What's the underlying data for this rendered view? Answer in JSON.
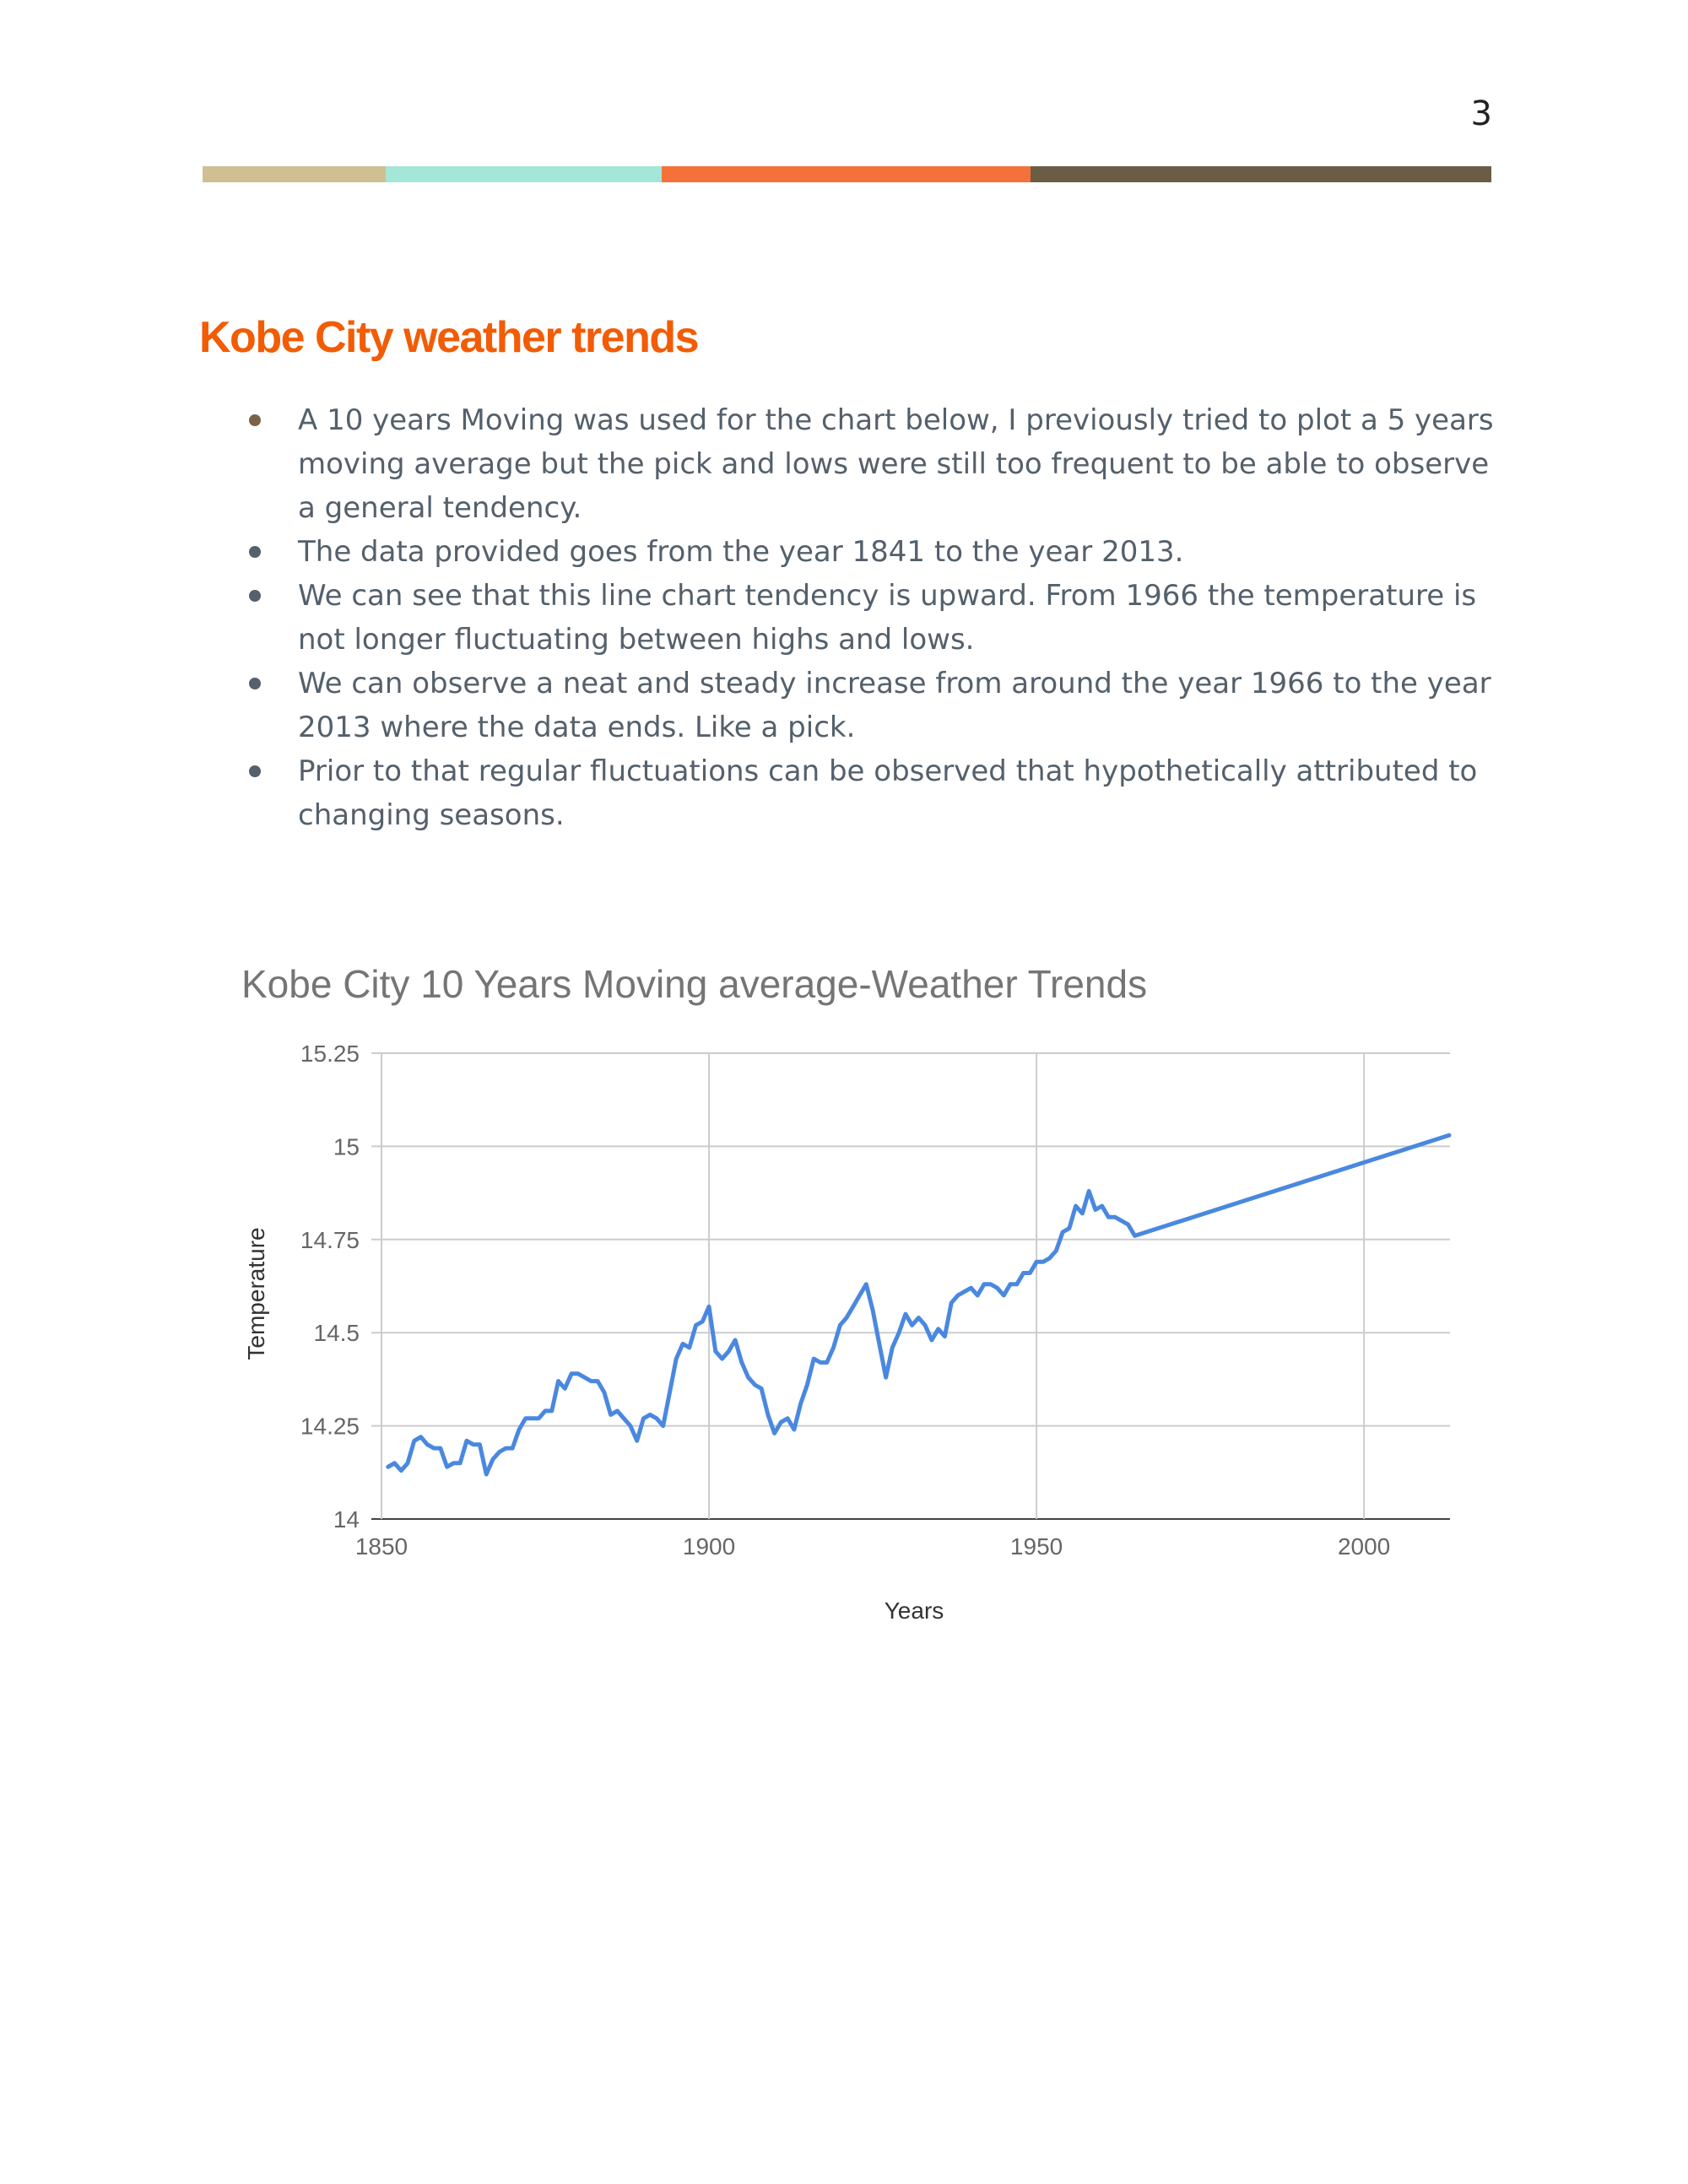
{
  "page": {
    "number": "3"
  },
  "color_bar": [
    "#cfbf93",
    "#a4e6d8",
    "#f47239",
    "#6b5c45"
  ],
  "heading": "Kobe City weather trends",
  "bullet_colors": [
    "#7a6249",
    "#54606b"
  ],
  "bullets": [
    "A 10 years Moving was used for the chart below, I previously tried to plot a 5 years moving average but the pick and lows were still too frequent to be able to observe a general tendency.",
    "The data provided goes from the year 1841 to the year 2013.",
    "We can see that this line chart tendency is upward. From 1966 the temperature is not longer fluctuating between highs and lows.",
    "We can observe a neat and steady increase from around the year 1966 to the year 2013 where the data ends. Like a pick.",
    "Prior to that regular fluctuations can be observed that hypothetically attributed to changing seasons."
  ],
  "chart_data": {
    "type": "line",
    "title": "Kobe City 10 Years Moving average-Weather Trends",
    "xlabel": "Years",
    "ylabel": "Temperature",
    "xlim": [
      1850,
      2013
    ],
    "ylim": [
      14,
      15.25
    ],
    "x_ticks": [
      "1850",
      "1900",
      "1950",
      "2000"
    ],
    "y_ticks": [
      "14",
      "14.25",
      "14.5",
      "14.75",
      "15",
      "15.25"
    ],
    "grid": true,
    "legend": "none",
    "line_color": "#4a88e0",
    "series": [
      {
        "x": [
          1851,
          1852,
          1853,
          1854,
          1855,
          1856,
          1857,
          1858,
          1859,
          1860,
          1861,
          1862,
          1863,
          1864,
          1865,
          1866,
          1867,
          1868,
          1869,
          1870,
          1871,
          1872,
          1873,
          1874,
          1875,
          1876,
          1877,
          1878,
          1879,
          1880,
          1881,
          1882,
          1883,
          1884,
          1885,
          1886,
          1887,
          1888,
          1889,
          1890,
          1891,
          1892,
          1893,
          1894,
          1895,
          1896,
          1897,
          1898,
          1899,
          1900,
          1901,
          1902,
          1903,
          1904,
          1905,
          1906,
          1907,
          1908,
          1909,
          1910,
          1911,
          1912,
          1913,
          1914,
          1915,
          1916,
          1917,
          1918,
          1919,
          1920,
          1921,
          1922,
          1923,
          1924,
          1925,
          1926,
          1927,
          1928,
          1929,
          1930,
          1931,
          1932,
          1933,
          1934,
          1935,
          1936,
          1937,
          1938,
          1939,
          1940,
          1941,
          1942,
          1943,
          1944,
          1945,
          1946,
          1947,
          1948,
          1949,
          1950,
          1951,
          1952,
          1953,
          1954,
          1955,
          1956,
          1957,
          1958,
          1959,
          1960,
          1961,
          1962,
          1963,
          1964,
          1965,
          2013
        ],
        "y": [
          14.14,
          14.15,
          14.13,
          14.15,
          14.21,
          14.22,
          14.2,
          14.19,
          14.19,
          14.14,
          14.15,
          14.15,
          14.21,
          14.2,
          14.2,
          14.12,
          14.16,
          14.18,
          14.19,
          14.19,
          14.24,
          14.27,
          14.27,
          14.27,
          14.29,
          14.29,
          14.37,
          14.35,
          14.39,
          14.39,
          14.38,
          14.37,
          14.37,
          14.34,
          14.28,
          14.29,
          14.27,
          14.25,
          14.21,
          14.27,
          14.28,
          14.27,
          14.25,
          14.34,
          14.43,
          14.47,
          14.46,
          14.52,
          14.53,
          14.57,
          14.45,
          14.43,
          14.45,
          14.48,
          14.42,
          14.38,
          14.36,
          14.35,
          14.28,
          14.23,
          14.26,
          14.27,
          14.24,
          14.31,
          14.36,
          14.43,
          14.42,
          14.42,
          14.46,
          14.52,
          14.54,
          14.57,
          14.6,
          14.63,
          14.56,
          14.47,
          14.38,
          14.46,
          14.5,
          14.55,
          14.52,
          14.54,
          14.52,
          14.48,
          14.51,
          14.49,
          14.58,
          14.6,
          14.61,
          14.62,
          14.6,
          14.63,
          14.63,
          14.62,
          14.6,
          14.63,
          14.63,
          14.66,
          14.66,
          14.69,
          14.69,
          14.7,
          14.72,
          14.77,
          14.78,
          14.84,
          14.82,
          14.88,
          14.83,
          14.84,
          14.81,
          14.81,
          14.8,
          14.79,
          14.76,
          15.03
        ]
      }
    ]
  }
}
